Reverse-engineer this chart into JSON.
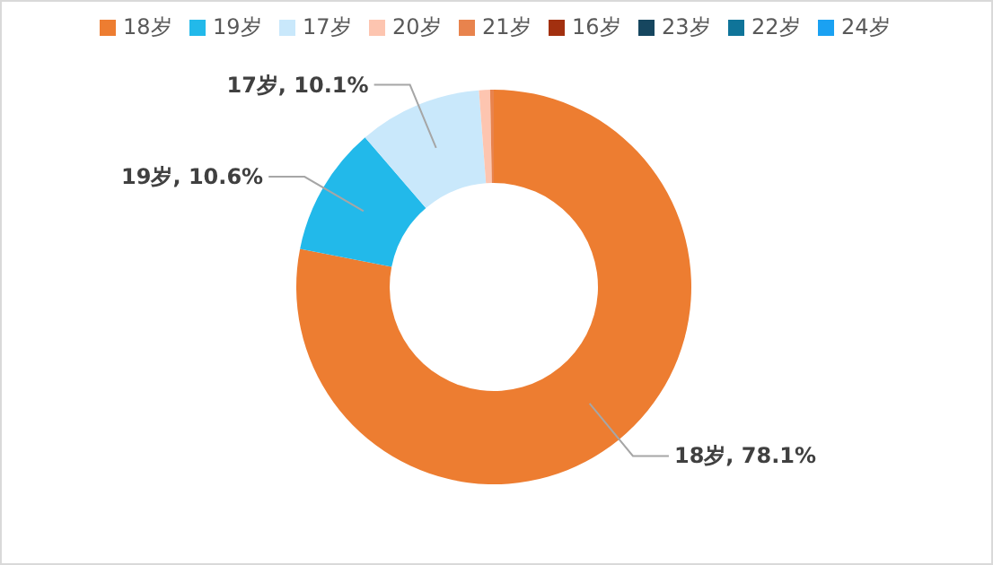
{
  "chart_data": {
    "type": "donut",
    "categories": [
      "18岁",
      "19岁",
      "17岁",
      "20岁",
      "21岁",
      "16岁",
      "23岁",
      "22岁",
      "24岁"
    ],
    "values": [
      78.1,
      10.6,
      10.1,
      0.9,
      0.3,
      null,
      null,
      null,
      null
    ],
    "colors": [
      "#ed7d31",
      "#22b9ea",
      "#c9e8fb",
      "#fdc5b0",
      "#e8834d",
      "#a2300f",
      "#16465f",
      "#0f7499",
      "#1aa1f2"
    ],
    "value_labels": [
      "18岁, 78.1%",
      "19岁, 10.6%",
      "17岁, 10.1%",
      null,
      null,
      null,
      null,
      null,
      null
    ],
    "legend": "top"
  }
}
